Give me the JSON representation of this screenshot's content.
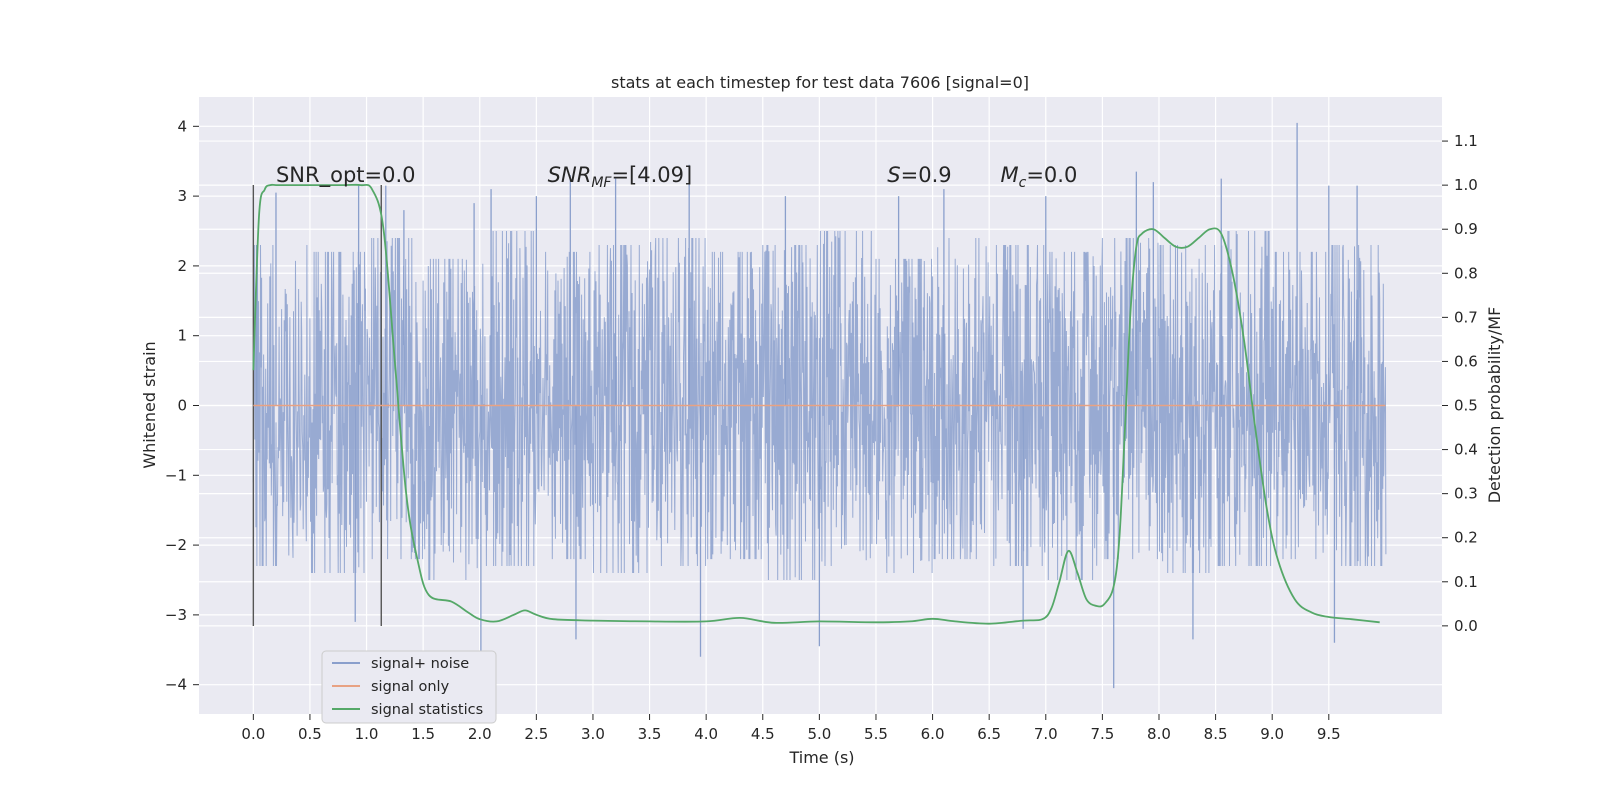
{
  "chart_data": {
    "type": "line",
    "title": "stats at each timestep for test data 7606 [signal=0]",
    "xlabel": "Time (s)",
    "ylabel": "Whitened strain",
    "ylabel_right": "Detection probability/MF",
    "xlim": [
      -0.48,
      10.5
    ],
    "ylim": [
      -4.42,
      4.42
    ],
    "ylim_right": [
      -0.2,
      1.2
    ],
    "x_ticks": [
      0.0,
      0.5,
      1.0,
      1.5,
      2.0,
      2.5,
      3.0,
      3.5,
      4.0,
      4.5,
      5.0,
      5.5,
      6.0,
      6.5,
      7.0,
      7.5,
      8.0,
      8.5,
      9.0,
      9.5
    ],
    "x_tick_labels": [
      "0.0",
      "0.5",
      "1.0",
      "1.5",
      "2.0",
      "2.5",
      "3.0",
      "3.5",
      "4.0",
      "4.5",
      "5.0",
      "5.5",
      "6.0",
      "6.5",
      "7.0",
      "7.5",
      "8.0",
      "8.5",
      "9.0",
      "9.5"
    ],
    "y_ticks": [
      4,
      3,
      2,
      1,
      0,
      -1,
      -2,
      -3,
      -4
    ],
    "y_tick_labels": [
      "4",
      "3",
      "2",
      "1",
      "0",
      "−1",
      "−2",
      "−3",
      "−4"
    ],
    "y_right_ticks": [
      1.1,
      1.0,
      0.9,
      0.8,
      0.7,
      0.6,
      0.5,
      0.4,
      0.3,
      0.2,
      0.1,
      0.0
    ],
    "y_right_tick_labels": [
      "1.1",
      "1.0",
      "0.9",
      "0.8",
      "0.7",
      "0.6",
      "0.5",
      "0.4",
      "0.3",
      "0.2",
      "0.1",
      "0.0"
    ],
    "grid": true,
    "legend_position": "lower-left",
    "annotations": [
      {
        "text": "SNR_opt=0.0",
        "x": 0.2,
        "y": 3.2
      },
      {
        "text_main": "SNR",
        "text_sub": "MF",
        "text_rest": "=[4.09]",
        "x": 2.6,
        "y": 3.2
      },
      {
        "text_main": "S",
        "text_rest": "=0.9",
        "x": 5.6,
        "y": 3.2
      },
      {
        "text_main": "M",
        "text_sub": "c",
        "text_rest": "=0.0",
        "x": 6.6,
        "y": 3.2
      }
    ],
    "vertical_markers": [
      {
        "x": 0.0,
        "ymin": -3.16,
        "ymax": 3.16
      },
      {
        "x": 1.13,
        "ymin": -3.16,
        "ymax": 3.16
      }
    ],
    "series": [
      {
        "name": "signal+ noise",
        "color": "#8a9fcc",
        "axis": "left",
        "x_range": [
          0.0,
          10.0
        ],
        "envelope_upper": [
          2.3,
          2.2,
          2.4,
          2.1,
          2.5,
          2.2,
          2.3,
          2.4,
          2.2,
          2.3,
          2.5,
          2.1,
          2.4,
          2.3,
          2.2,
          2.4,
          2.3,
          2.5,
          2.2,
          2.3
        ],
        "envelope_lower": [
          -2.3,
          -2.4,
          -2.2,
          -2.5,
          -2.3,
          -2.2,
          -2.4,
          -2.3,
          -2.2,
          -2.5,
          -2.3,
          -2.4,
          -2.2,
          -2.3,
          -2.5,
          -2.2,
          -2.4,
          -2.3,
          -2.2,
          -2.3
        ],
        "spikes": [
          {
            "x": 0.03,
            "y": 2.3
          },
          {
            "x": 0.2,
            "y": 3.05
          },
          {
            "x": 0.9,
            "y": -3.1
          },
          {
            "x": 0.93,
            "y": 3.15
          },
          {
            "x": 1.17,
            "y": 3.15
          },
          {
            "x": 1.33,
            "y": 2.8
          },
          {
            "x": 1.95,
            "y": 2.9
          },
          {
            "x": 2.01,
            "y": -3.55
          },
          {
            "x": 2.1,
            "y": 3.1
          },
          {
            "x": 2.5,
            "y": 3.0
          },
          {
            "x": 2.8,
            "y": 3.3
          },
          {
            "x": 2.85,
            "y": -3.35
          },
          {
            "x": 3.2,
            "y": 3.25
          },
          {
            "x": 3.85,
            "y": 3.45
          },
          {
            "x": 3.95,
            "y": -3.6
          },
          {
            "x": 4.7,
            "y": 3.0
          },
          {
            "x": 5.0,
            "y": -3.45
          },
          {
            "x": 5.7,
            "y": 3.0
          },
          {
            "x": 6.1,
            "y": 3.1
          },
          {
            "x": 6.8,
            "y": -3.2
          },
          {
            "x": 7.0,
            "y": 3.0
          },
          {
            "x": 7.6,
            "y": -4.05
          },
          {
            "x": 7.8,
            "y": 3.35
          },
          {
            "x": 7.95,
            "y": 3.2
          },
          {
            "x": 8.3,
            "y": -3.35
          },
          {
            "x": 8.55,
            "y": 3.25
          },
          {
            "x": 9.22,
            "y": 4.05
          },
          {
            "x": 9.55,
            "y": -3.4
          },
          {
            "x": 9.5,
            "y": 3.15
          },
          {
            "x": 9.75,
            "y": 3.15
          }
        ]
      },
      {
        "name": "signal only",
        "color": "#e8a283",
        "axis": "left",
        "x": [
          0.0,
          10.0
        ],
        "values": [
          0.0,
          0.0
        ]
      },
      {
        "name": "signal statistics",
        "color": "#55a868",
        "axis": "right",
        "x": [
          0.0,
          0.05,
          0.1,
          0.15,
          0.2,
          0.3,
          0.5,
          0.8,
          0.95,
          1.05,
          1.15,
          1.25,
          1.35,
          1.45,
          1.55,
          1.75,
          1.9,
          2.0,
          2.15,
          2.3,
          2.4,
          2.5,
          2.65,
          3.0,
          3.5,
          4.0,
          4.3,
          4.6,
          5.0,
          5.5,
          5.8,
          6.0,
          6.2,
          6.5,
          6.8,
          6.97,
          7.05,
          7.12,
          7.2,
          7.28,
          7.36,
          7.45,
          7.52,
          7.6,
          7.65,
          7.7,
          7.75,
          7.8,
          7.85,
          7.95,
          8.05,
          8.15,
          8.25,
          8.35,
          8.45,
          8.55,
          8.65,
          8.75,
          8.85,
          8.95,
          9.05,
          9.2,
          9.35,
          9.5,
          9.7,
          9.95
        ],
        "values": [
          0.58,
          0.93,
          0.99,
          1.0,
          1.0,
          1.0,
          1.0,
          1.0,
          1.0,
          0.99,
          0.9,
          0.6,
          0.3,
          0.15,
          0.07,
          0.055,
          0.03,
          0.015,
          0.01,
          0.025,
          0.035,
          0.025,
          0.015,
          0.012,
          0.01,
          0.01,
          0.018,
          0.007,
          0.01,
          0.008,
          0.01,
          0.016,
          0.01,
          0.005,
          0.012,
          0.015,
          0.04,
          0.1,
          0.17,
          0.12,
          0.06,
          0.045,
          0.05,
          0.09,
          0.2,
          0.45,
          0.72,
          0.86,
          0.89,
          0.9,
          0.88,
          0.86,
          0.86,
          0.88,
          0.9,
          0.89,
          0.8,
          0.65,
          0.45,
          0.27,
          0.15,
          0.06,
          0.03,
          0.02,
          0.015,
          0.008
        ]
      }
    ]
  }
}
